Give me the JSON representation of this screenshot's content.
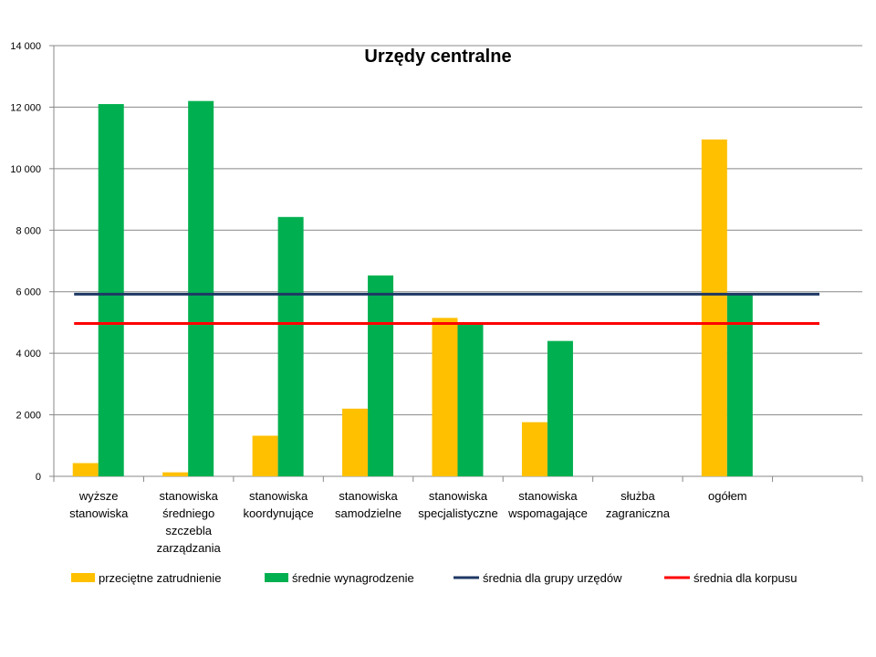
{
  "chart_data": {
    "type": "bar",
    "title": "Urzędy centralne",
    "xlabel": "",
    "ylabel": "",
    "ylim": [
      0,
      14000
    ],
    "yticks": [
      0,
      2000,
      4000,
      6000,
      8000,
      10000,
      12000,
      14000
    ],
    "ytick_labels": [
      "0",
      "2 000",
      "4 000",
      "6 000",
      "8 000",
      "10 000",
      "12 000",
      "14 000"
    ],
    "grid": true,
    "legend_position": "bottom",
    "categories": [
      [
        "wyższe",
        "stanowiska"
      ],
      [
        "stanowiska",
        "średniego",
        "szczebla",
        "zarządzania"
      ],
      [
        "stanowiska",
        "koordynujące"
      ],
      [
        "stanowiska",
        "samodzielne"
      ],
      [
        "stanowiska",
        "specjalistyczne"
      ],
      [
        "stanowiska",
        "wspomagające"
      ],
      [
        "służba",
        "zagraniczna"
      ],
      [
        "ogółem"
      ],
      []
    ],
    "series": [
      {
        "name": "przeciętne zatrudnienie",
        "kind": "bar",
        "color": "#FFC000",
        "values": [
          430,
          130,
          1320,
          2200,
          5150,
          1760,
          0,
          10950,
          null
        ]
      },
      {
        "name": "średnie wynagrodzenie",
        "kind": "bar",
        "color": "#00B050",
        "values": [
          12100,
          12200,
          8430,
          6530,
          4980,
          4400,
          0,
          5920,
          null
        ]
      },
      {
        "name": "średnia dla grupy urzędów",
        "kind": "line",
        "color": "#1F3864",
        "value": 5920
      },
      {
        "name": "średnia dla korpusu",
        "kind": "line",
        "color": "#FF0000",
        "value": 4970
      }
    ]
  }
}
